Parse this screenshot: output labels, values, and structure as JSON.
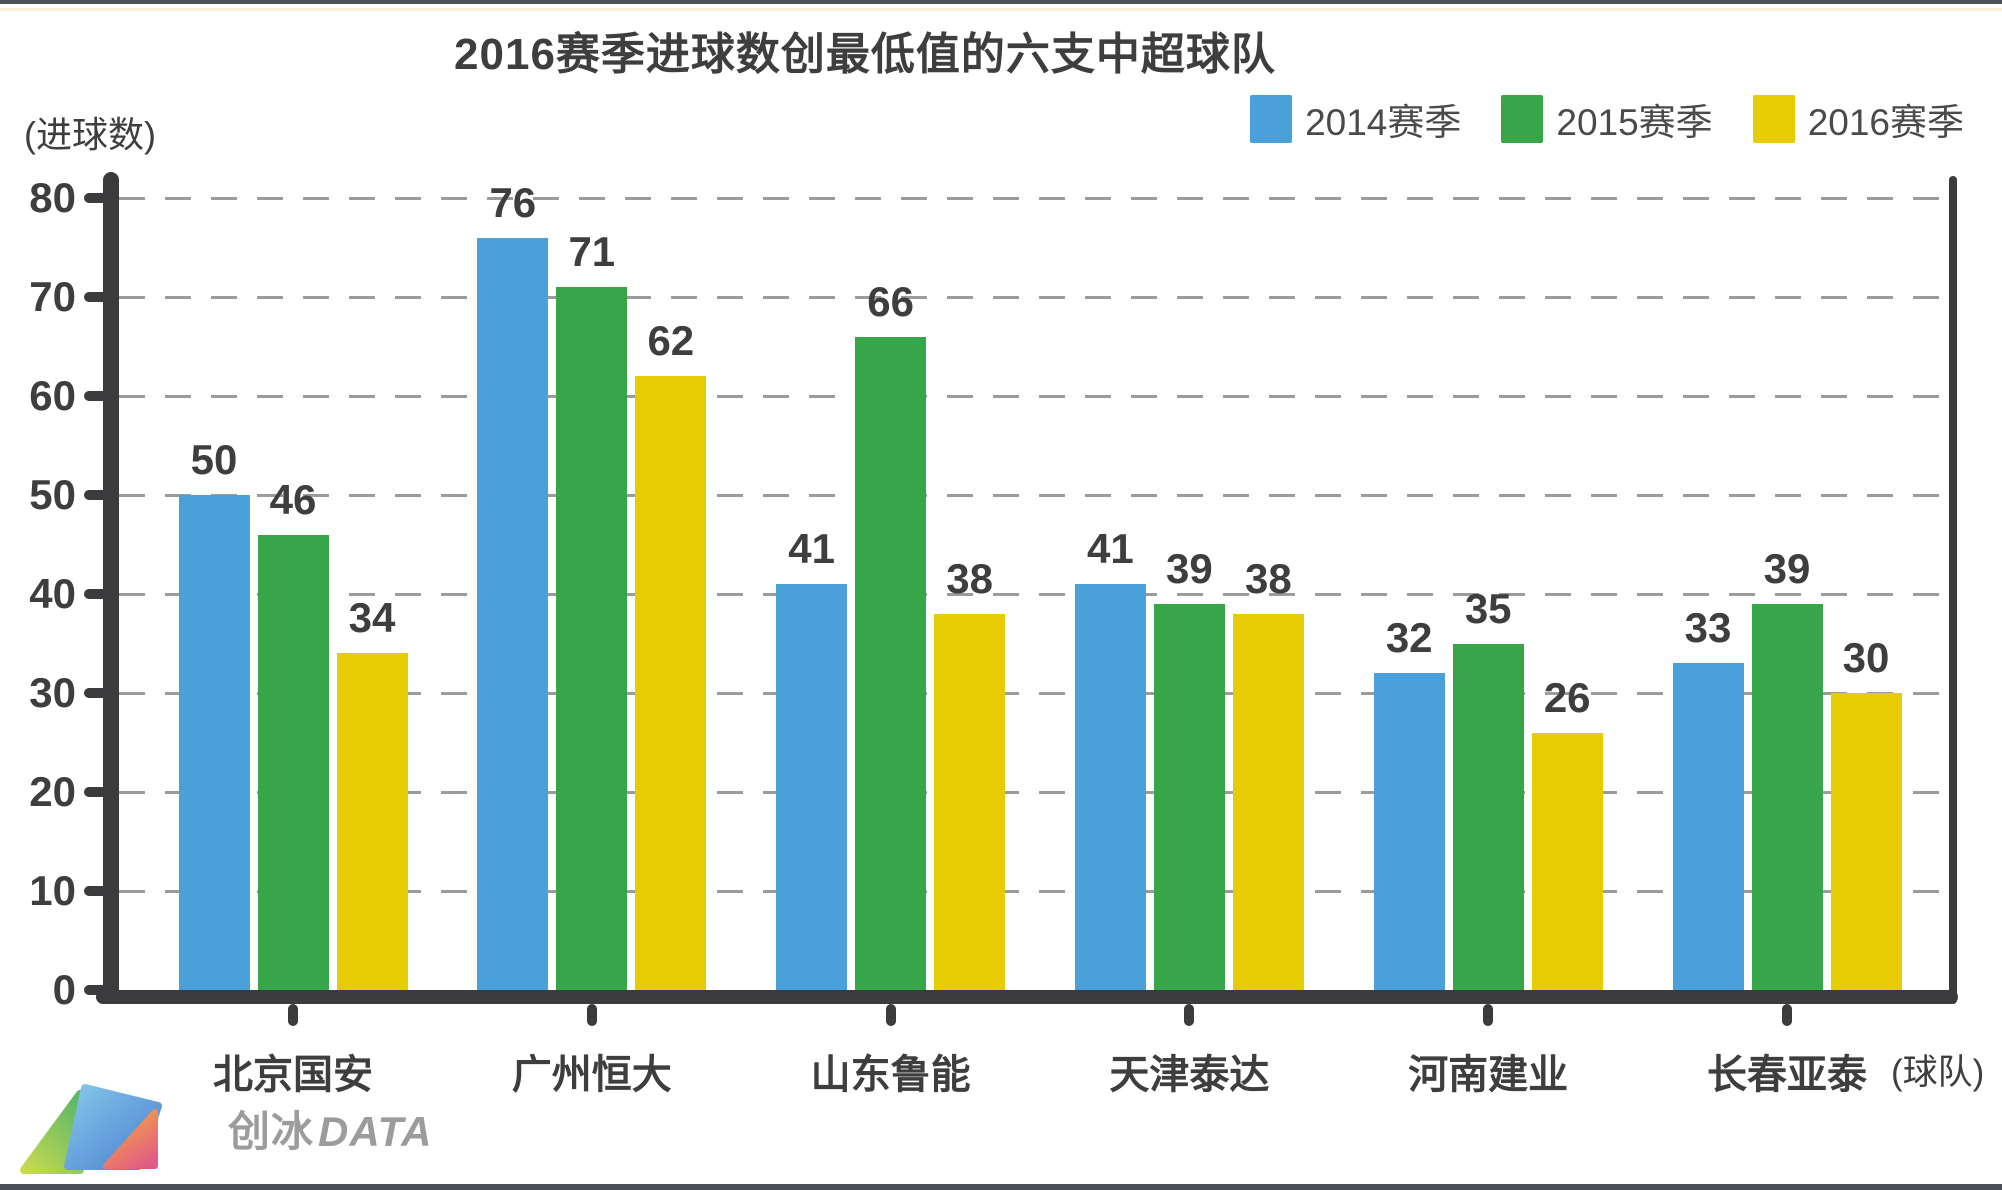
{
  "title": "2016赛季进球数创最低值的六支中超球队",
  "y_axis": {
    "unit": "(进球数)",
    "ticks": [
      80,
      70,
      60,
      50,
      40,
      30,
      20,
      10,
      0
    ]
  },
  "x_axis": {
    "unit": "(球队)"
  },
  "chart_data": {
    "type": "bar",
    "title": "2016赛季进球数创最低值的六支中超球队",
    "categories": [
      "北京国安",
      "广州恒大",
      "山东鲁能",
      "天津泰达",
      "河南建业",
      "长春亚泰"
    ],
    "series": [
      {
        "name": "2014赛季",
        "color": "#4AA1DA",
        "values": [
          50,
          76,
          41,
          41,
          32,
          33
        ]
      },
      {
        "name": "2015赛季",
        "color": "#37A64B",
        "values": [
          46,
          71,
          66,
          39,
          35,
          39
        ]
      },
      {
        "name": "2016赛季",
        "color": "#E5CC04",
        "values": [
          34,
          62,
          38,
          38,
          26,
          30
        ]
      }
    ],
    "ylabel_unit": "(进球数)",
    "xlabel_unit": "(球队)",
    "ylim": [
      0,
      80
    ],
    "grid": "horizontal dashed",
    "legend_position": "top-right",
    "value_labels": "above bars"
  },
  "logo": {
    "text_cn": "创冰",
    "text_en": "DATA"
  },
  "colors": {
    "axis": "#3B3B3D",
    "grid": "#9B9B9B",
    "text": "#3E3E40",
    "legend_text": "#4A4A4C",
    "logo_text": "#9C9C9C",
    "frame_strip": "#4C5157",
    "background": "#FFFFFF"
  }
}
